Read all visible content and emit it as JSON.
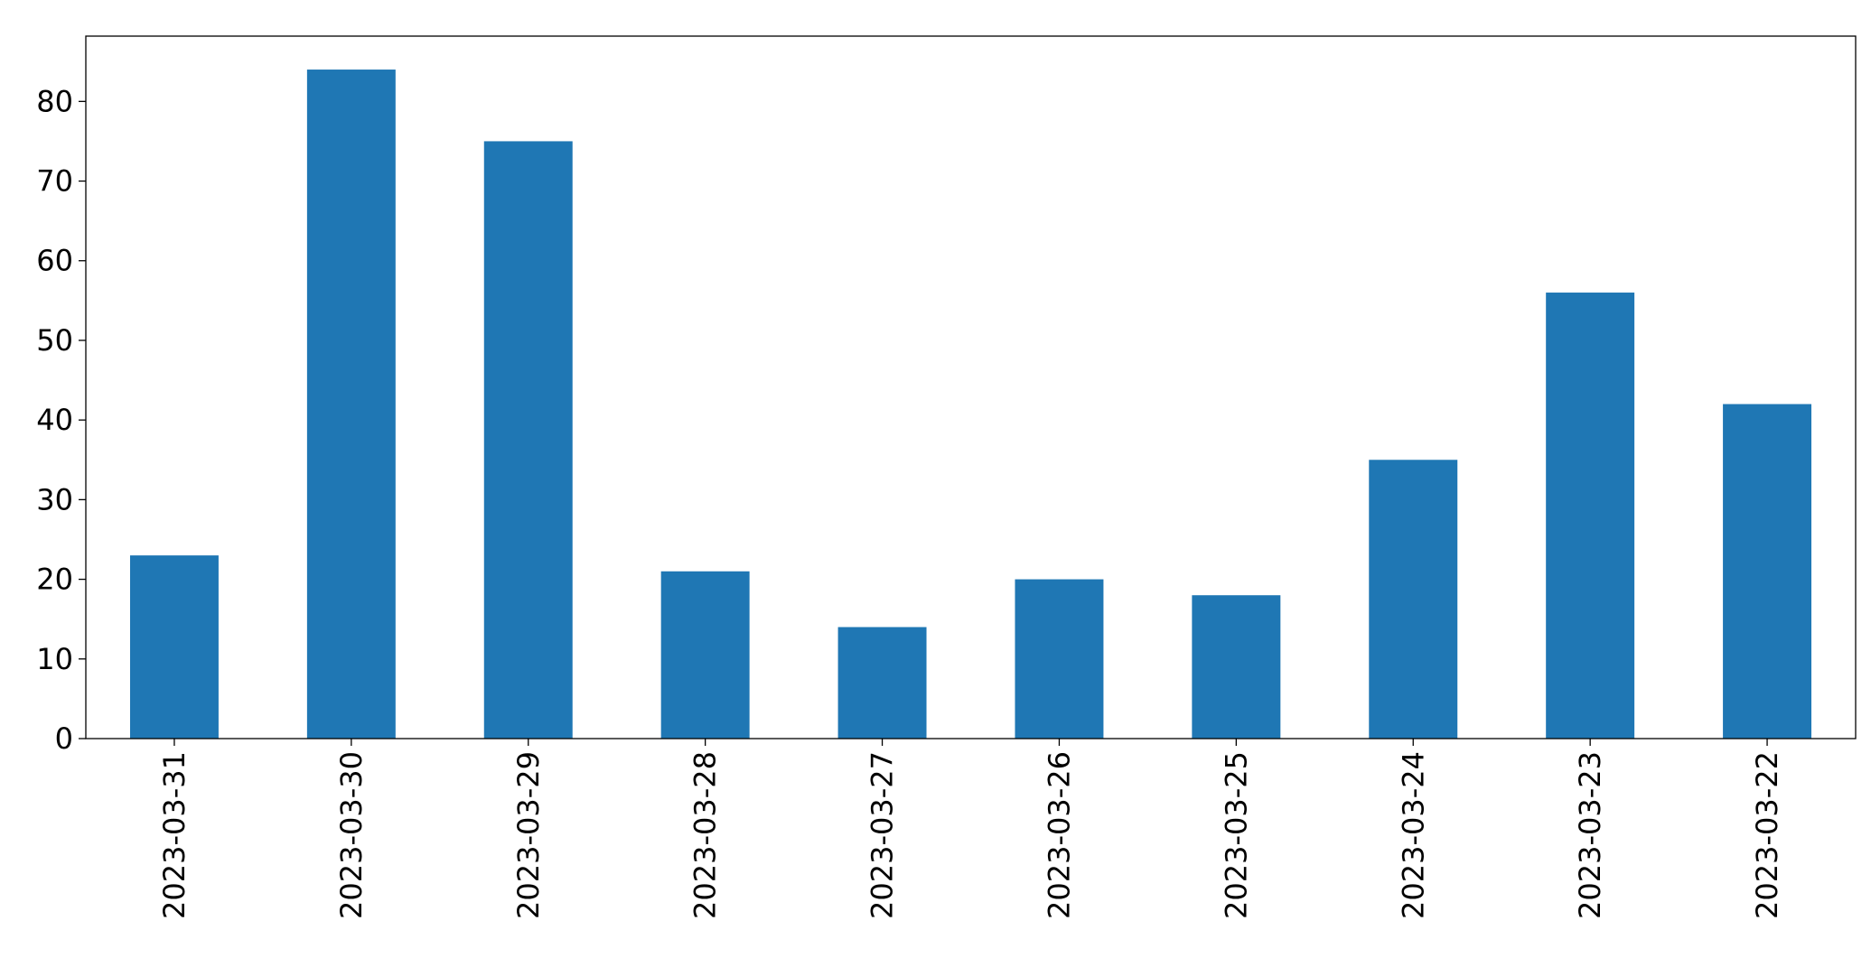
{
  "chart_data": {
    "type": "bar",
    "categories": [
      "2023-03-31",
      "2023-03-30",
      "2023-03-29",
      "2023-03-28",
      "2023-03-27",
      "2023-03-26",
      "2023-03-25",
      "2023-03-24",
      "2023-03-23",
      "2023-03-22"
    ],
    "values": [
      23,
      84,
      75,
      21,
      14,
      20,
      18,
      35,
      56,
      42
    ],
    "color": "#1f77b4",
    "ylim": [
      0,
      88.2
    ],
    "yticks": [
      0,
      10,
      20,
      30,
      40,
      50,
      60,
      70,
      80
    ],
    "grid": false
  }
}
